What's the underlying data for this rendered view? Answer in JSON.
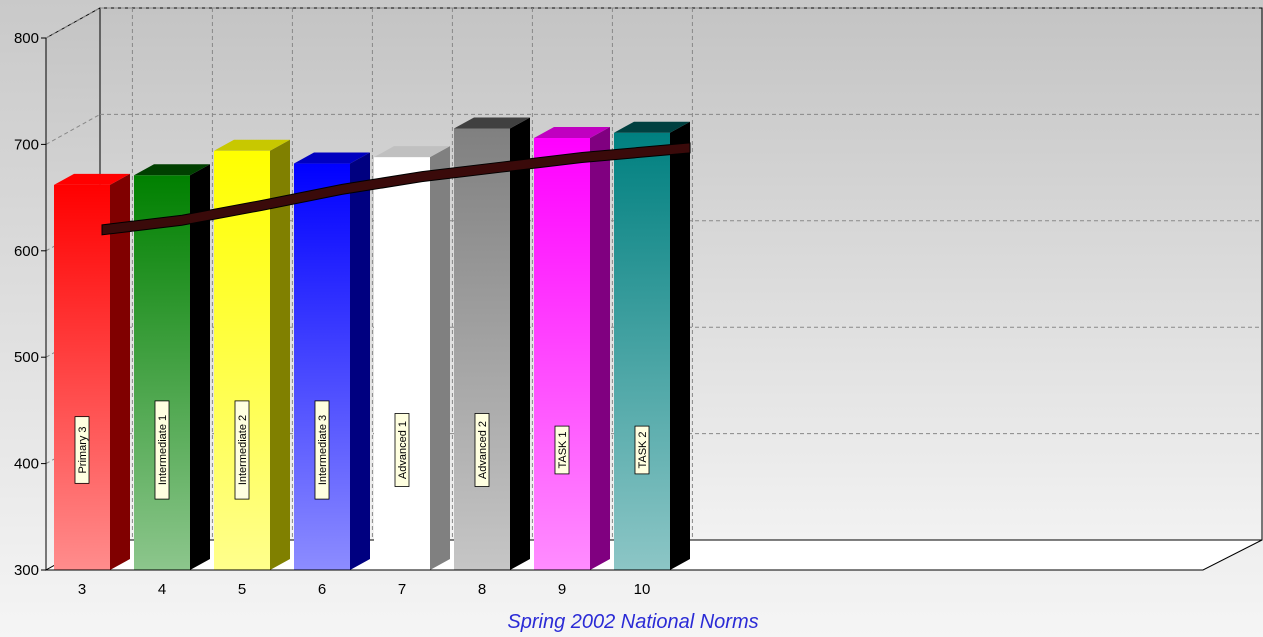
{
  "chart_data": {
    "type": "bar",
    "categories": [
      "3",
      "4",
      "5",
      "6",
      "7",
      "8",
      "9",
      "10"
    ],
    "bar_labels": [
      "Primary 3",
      "Intermediate 1",
      "Intermediate 2",
      "Intermediate 3",
      "Advanced 1",
      "Advanced 2",
      "TASK 1",
      "TASK 2"
    ],
    "values": [
      662,
      671,
      694,
      682,
      688,
      715,
      706,
      711
    ],
    "trend_values": [
      615,
      624,
      638,
      653,
      665,
      674,
      683,
      692
    ],
    "xlabel": "Spring 2002 National Norms",
    "ylabel": "",
    "ylim": [
      300,
      800
    ],
    "yticks": [
      300,
      400,
      500,
      600,
      700,
      800
    ],
    "grid": true,
    "legend": "none",
    "bar_colors": [
      "#ff0000",
      "#008000",
      "#ffff00",
      "#0000ff",
      "#ffffff",
      "#808080",
      "#ff00ff",
      "#008080"
    ],
    "side_colors": [
      "#800000",
      "#000000",
      "#808000",
      "#000080",
      "#808080",
      "#000000",
      "#800080",
      "#000000"
    ],
    "top_colors": [
      "#ff0000",
      "#004000",
      "#c8c800",
      "#0000c0",
      "#c0c0c0",
      "#404040",
      "#c000c0",
      "#004040"
    ],
    "trend_color": "#3a0a0a"
  }
}
